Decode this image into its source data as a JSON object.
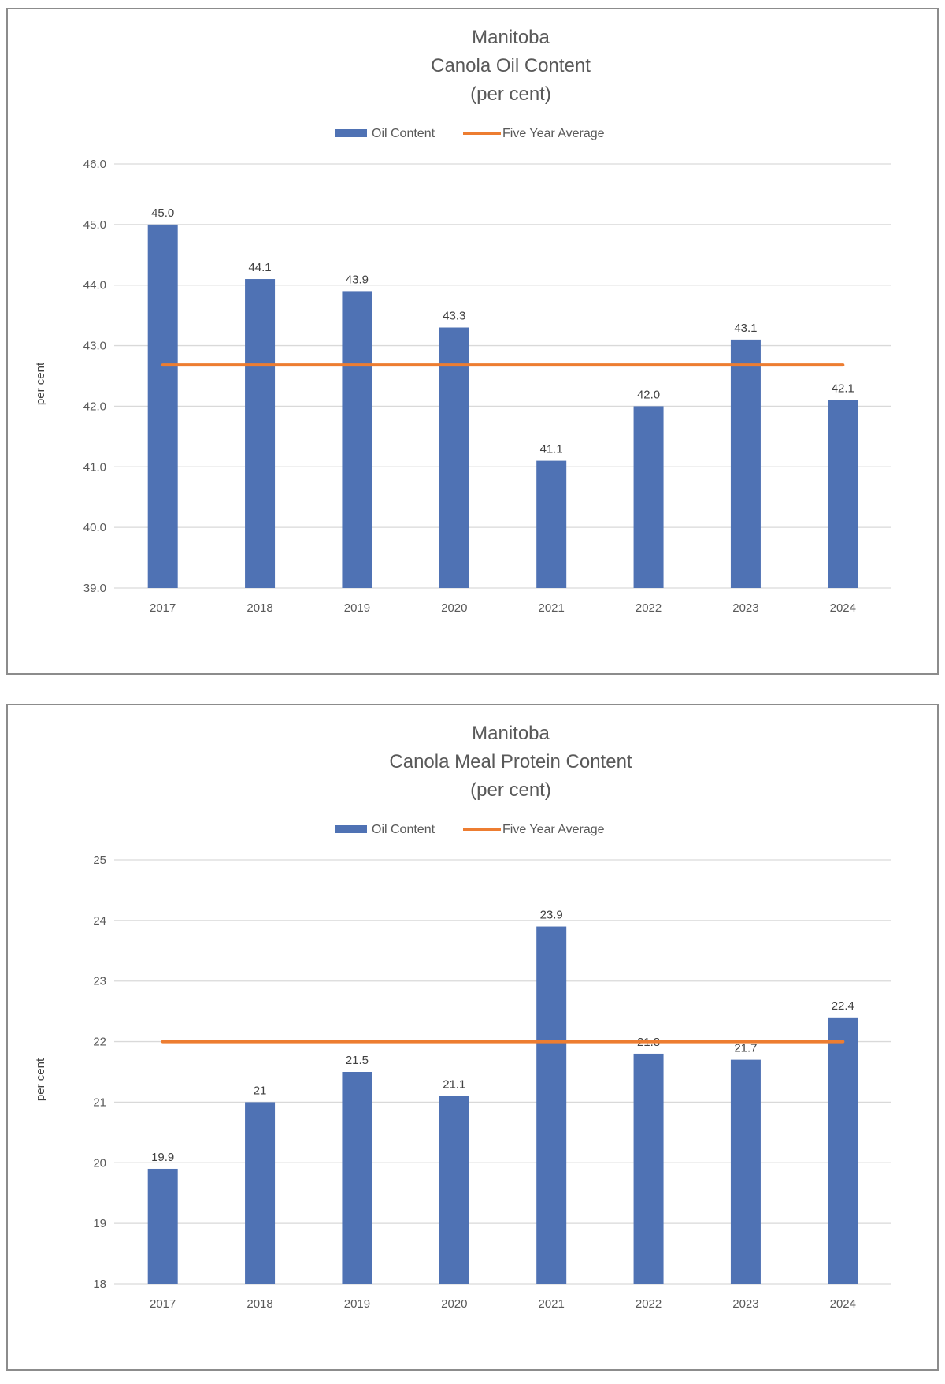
{
  "chart_data": [
    {
      "type": "bar",
      "title": [
        "Manitoba",
        "Canola Oil Content",
        "(per cent)"
      ],
      "ylabel": "per cent",
      "xlabel": "",
      "categories": [
        "2017",
        "2018",
        "2019",
        "2020",
        "2021",
        "2022",
        "2023",
        "2024"
      ],
      "series": [
        {
          "name": "Oil Content",
          "type": "bar",
          "color": "#4F72B4",
          "values": [
            45.0,
            44.1,
            43.9,
            43.3,
            41.1,
            42.0,
            43.1,
            42.1
          ],
          "labels": [
            "45.0",
            "44.1",
            "43.9",
            "43.3",
            "41.1",
            "42.0",
            "43.1",
            "42.1"
          ]
        },
        {
          "name": "Five Year Average",
          "type": "line",
          "color": "#ED7D31",
          "values": [
            42.68,
            42.68,
            42.68,
            42.68,
            42.68,
            42.68,
            42.68,
            42.68
          ]
        }
      ],
      "ylim": [
        39.0,
        46.0
      ],
      "yticks": [
        39.0,
        40.0,
        41.0,
        42.0,
        43.0,
        44.0,
        45.0,
        46.0
      ],
      "ytick_labels": [
        "39.0",
        "40.0",
        "41.0",
        "42.0",
        "43.0",
        "44.0",
        "45.0",
        "46.0"
      ],
      "grid": true,
      "legend": "top"
    },
    {
      "type": "bar",
      "title": [
        "Manitoba",
        "Canola Meal Protein Content",
        "(per cent)"
      ],
      "ylabel": "per cent",
      "xlabel": "",
      "categories": [
        "2017",
        "2018",
        "2019",
        "2020",
        "2021",
        "2022",
        "2023",
        "2024"
      ],
      "series": [
        {
          "name": "Oil Content",
          "type": "bar",
          "color": "#4F72B4",
          "values": [
            19.9,
            21,
            21.5,
            21.1,
            23.9,
            21.8,
            21.7,
            22.4
          ],
          "labels": [
            "19.9",
            "21",
            "21.5",
            "21.1",
            "23.9",
            "21.8",
            "21.7",
            "22.4"
          ]
        },
        {
          "name": "Five Year Average",
          "type": "line",
          "color": "#ED7D31",
          "values": [
            22.0,
            22.0,
            22.0,
            22.0,
            22.0,
            22.0,
            22.0,
            22.0
          ]
        }
      ],
      "ylim": [
        18,
        25
      ],
      "yticks": [
        18,
        19,
        20,
        21,
        22,
        23,
        24,
        25
      ],
      "ytick_labels": [
        "18",
        "19",
        "20",
        "21",
        "22",
        "23",
        "24",
        "25"
      ],
      "grid": true,
      "legend": "top"
    }
  ]
}
